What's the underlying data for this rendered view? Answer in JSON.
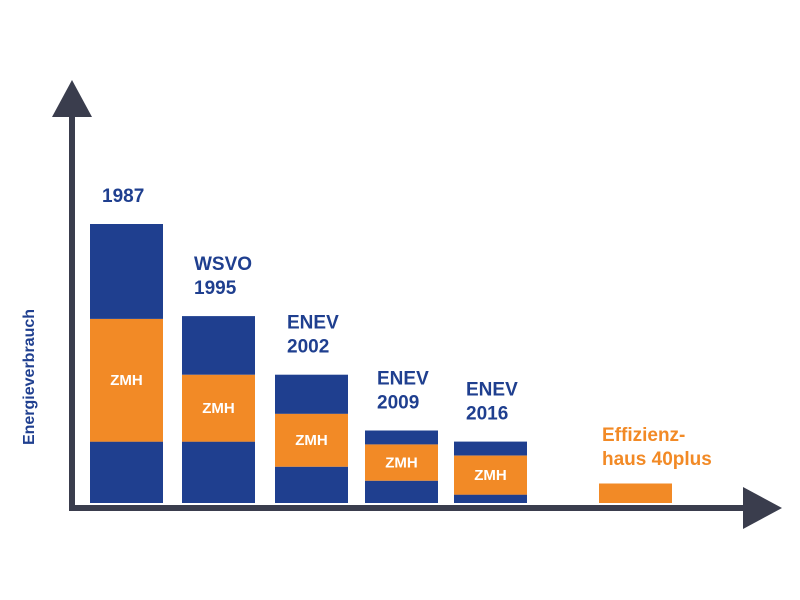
{
  "chart_data": {
    "type": "bar",
    "stacked": true,
    "title": "",
    "xlabel": "",
    "ylabel": "Energieverbrauch",
    "grid": false,
    "legend": "none",
    "colors": {
      "base": "#1f3f8f",
      "zmh": "#f28a26",
      "axis": "#3a3d4d"
    },
    "ylim": [
      0,
      100
    ],
    "categories": [
      {
        "lines": [
          "1987"
        ],
        "label_color": "#1f3f8f"
      },
      {
        "lines": [
          "WSVO",
          "1995"
        ],
        "label_color": "#1f3f8f"
      },
      {
        "lines": [
          "ENEV",
          "2002"
        ],
        "label_color": "#1f3f8f"
      },
      {
        "lines": [
          "ENEV",
          "2009"
        ],
        "label_color": "#1f3f8f"
      },
      {
        "lines": [
          "ENEV",
          "2016"
        ],
        "label_color": "#1f3f8f"
      },
      {
        "lines": [
          "Effizienz-",
          "haus 40plus"
        ],
        "label_color": "#f28a26"
      }
    ],
    "segment_label": "ZMH",
    "series": [
      {
        "values": [
          22,
          22,
          13,
          8,
          3,
          0
        ]
      },
      {
        "values": [
          44,
          24,
          19,
          13,
          14,
          7
        ]
      },
      {
        "values": [
          34,
          21,
          14,
          5,
          5,
          0
        ]
      }
    ]
  }
}
